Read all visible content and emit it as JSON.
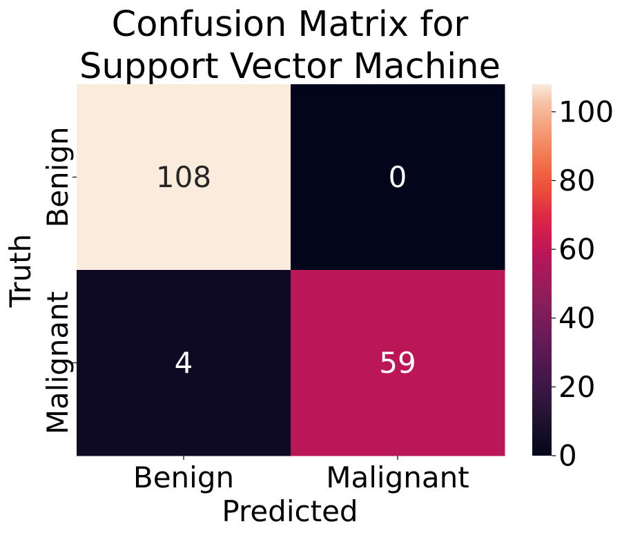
{
  "chart_data": {
    "type": "heatmap",
    "title": [
      "Confusion Matrix for",
      "Support Vector Machine"
    ],
    "xlabel": "Predicted",
    "ylabel": "Truth",
    "x_categories": [
      "Benign",
      "Malignant"
    ],
    "y_categories": [
      "Benign",
      "Malignant"
    ],
    "values": [
      [
        108,
        0
      ],
      [
        4,
        59
      ]
    ],
    "colorbar": {
      "min": 0,
      "max": 108,
      "ticks": [
        "0",
        "20",
        "40",
        "60",
        "80",
        "100"
      ],
      "colormap": "rocket"
    },
    "grid": false
  }
}
